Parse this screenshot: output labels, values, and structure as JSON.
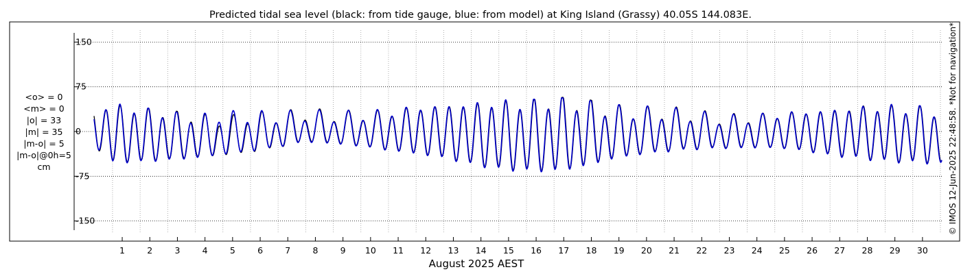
{
  "chart_data": {
    "type": "line",
    "title": "Predicted tidal sea level (black: from tide gauge, blue: from model) at King Island (Grassy) 40.05S 144.083E.",
    "xlabel": "August 2025 AEST",
    "ylabel": "",
    "xlim": [
      0.33,
      31.05
    ],
    "ylim": [
      -170,
      170
    ],
    "x_ticks": [
      "1",
      "2",
      "3",
      "4",
      "5",
      "6",
      "7",
      "8",
      "9",
      "10",
      "11",
      "12",
      "13",
      "14",
      "15",
      "16",
      "17",
      "18",
      "19",
      "20",
      "21",
      "22",
      "23",
      "24",
      "25",
      "26",
      "27",
      "28",
      "29",
      "30"
    ],
    "y_ticks": [
      "150",
      "75",
      "0",
      "-75",
      "-150"
    ],
    "grid": true,
    "tide_model": {
      "mean_level_cm": 0,
      "tidal_periods_days": [
        0.5175,
        0.5,
        1.0758,
        0.9973
      ],
      "note_series_shape": "mixed semidiurnal tide, spring tides near Aug 12-17 and Aug 25-28"
    },
    "series": [
      {
        "color": "#000000",
        "x": [
          0.33,
          1.0,
          2.0,
          3.0,
          4.0,
          5.0,
          6.0,
          7.0,
          8.0,
          9.0,
          10.0,
          11.0,
          12.0,
          13.0,
          14.0,
          15.0,
          16.0,
          17.0,
          18.0,
          19.0,
          20.0,
          21.0,
          22.0,
          23.0,
          24.0,
          25.0,
          26.0,
          27.0,
          28.0,
          29.0,
          30.0,
          31.05
        ],
        "high_water_cm": [
          43,
          48,
          40,
          36,
          30,
          26,
          38,
          44,
          54,
          58,
          60,
          62,
          64,
          60,
          58,
          56,
          52,
          58,
          56,
          46,
          44,
          50,
          52,
          50,
          56,
          60,
          60,
          56,
          56,
          50,
          44,
          38
        ],
        "low_water_cm": [
          -30,
          -57,
          -55,
          -52,
          -50,
          -48,
          -48,
          -45,
          -40,
          -50,
          -57,
          -62,
          -62,
          -62,
          -68,
          -72,
          -72,
          -72,
          -66,
          -55,
          -50,
          -50,
          -52,
          -55,
          -60,
          -60,
          -60,
          -62,
          -60,
          -60,
          -58,
          -58
        ]
      },
      {
        "color": "#0000cc",
        "x": [
          0.33,
          1.0,
          2.0,
          3.0,
          4.0,
          5.0,
          6.0,
          7.0,
          8.0,
          9.0,
          10.0,
          11.0,
          12.0,
          13.0,
          14.0,
          15.0,
          16.0,
          17.0,
          18.0,
          19.0,
          20.0,
          21.0,
          22.0,
          23.0,
          24.0,
          25.0,
          26.0,
          27.0,
          28.0,
          29.0,
          30.0,
          31.05
        ],
        "high_water_cm": [
          40,
          50,
          41,
          35,
          28,
          36,
          40,
          44,
          52,
          57,
          61,
          63,
          65,
          60,
          59,
          57,
          53,
          57,
          55,
          45,
          45,
          49,
          51,
          49,
          55,
          61,
          61,
          57,
          55,
          51,
          45,
          38
        ],
        "low_water_cm": [
          -28,
          -58,
          -56,
          -53,
          -51,
          -48,
          -47,
          -44,
          -41,
          -51,
          -58,
          -63,
          -63,
          -63,
          -69,
          -73,
          -73,
          -73,
          -67,
          -56,
          -51,
          -51,
          -53,
          -56,
          -61,
          -61,
          -61,
          -63,
          -61,
          -61,
          -59,
          -59
        ]
      }
    ],
    "stats": [
      "<o> = 0",
      "<m> = 0",
      "|o| = 33",
      "|m| = 35",
      "|m-o| = 5",
      "|m-o|@0h=5",
      "cm"
    ],
    "credit": "© IMOS 12-Jun-2025 22:48:58. *Not for navigation*"
  }
}
